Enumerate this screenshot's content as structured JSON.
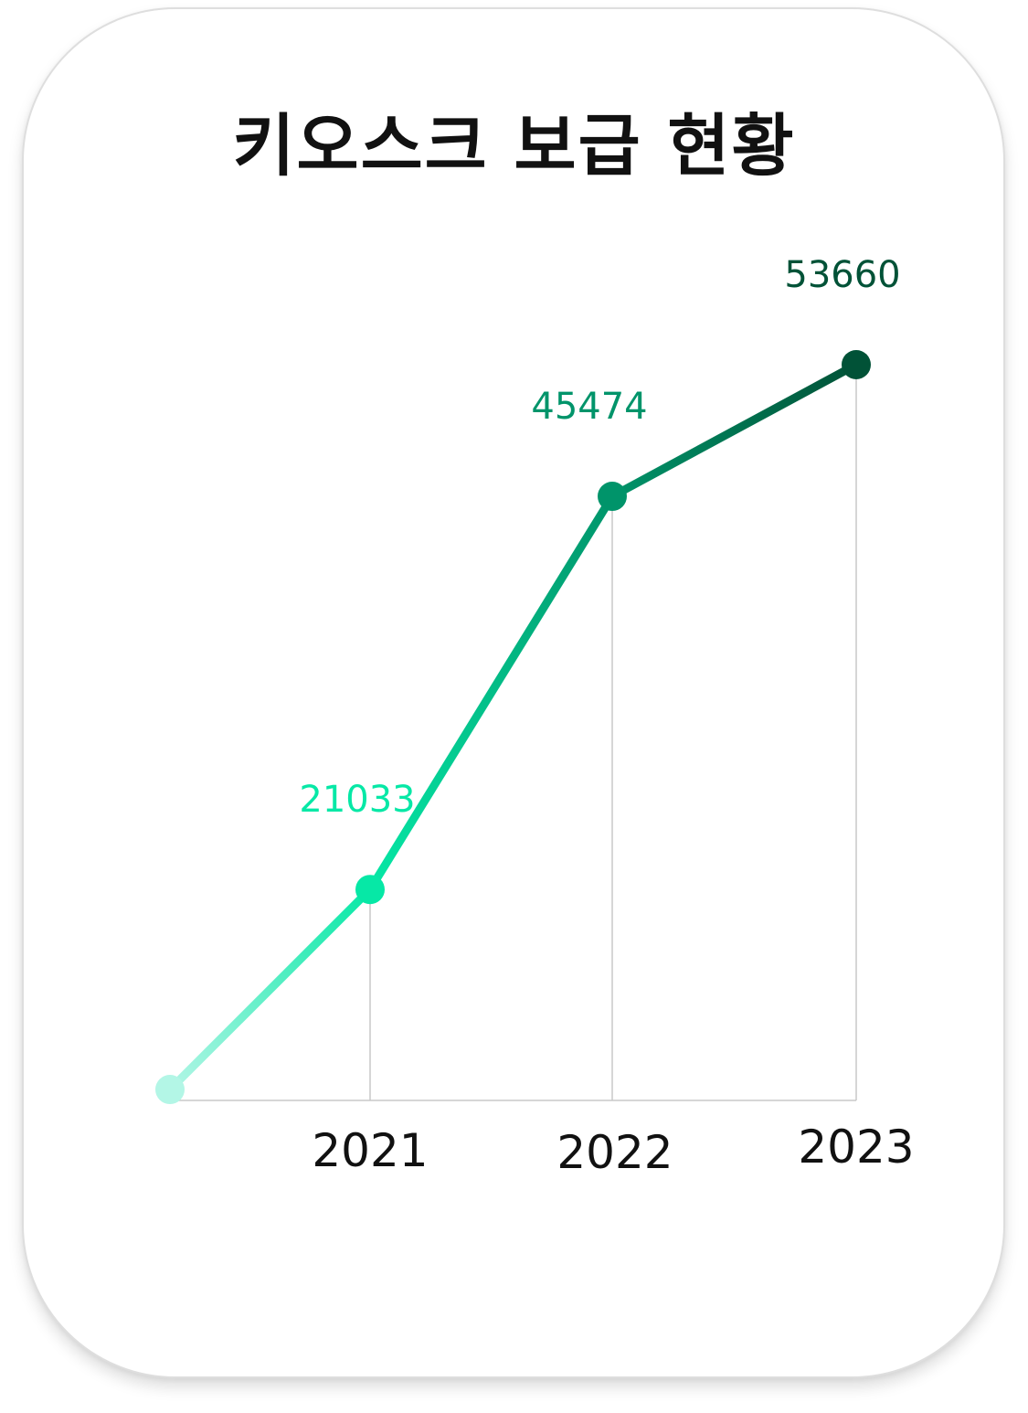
{
  "colors": {
    "start": "#b3f6e6",
    "c2021": "#06e8a6",
    "c2022": "#00946a",
    "c2023": "#015237",
    "grid": "#c8c8c8",
    "axis_text": "#111111"
  },
  "chart_data": {
    "type": "line",
    "title": "키오스크 보급 현황",
    "xlabel": "",
    "ylabel": "",
    "x": [
      "",
      "2021",
      "2022",
      "2023"
    ],
    "values": [
      null,
      21033,
      45474,
      53660
    ],
    "data_labels": [
      "",
      "21033",
      "45474",
      "53660"
    ],
    "start_point_estimate": 8600,
    "grid": false,
    "legend": "none"
  }
}
